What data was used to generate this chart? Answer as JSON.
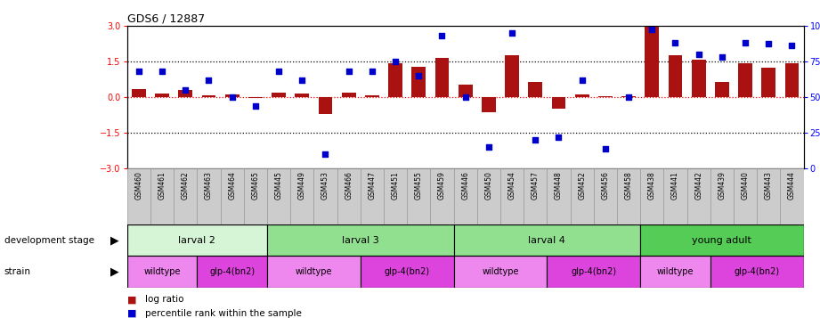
{
  "title": "GDS6 / 12887",
  "samples": [
    "GSM460",
    "GSM461",
    "GSM462",
    "GSM463",
    "GSM464",
    "GSM465",
    "GSM445",
    "GSM449",
    "GSM453",
    "GSM466",
    "GSM447",
    "GSM451",
    "GSM455",
    "GSM459",
    "GSM446",
    "GSM450",
    "GSM454",
    "GSM457",
    "GSM448",
    "GSM452",
    "GSM456",
    "GSM458",
    "GSM438",
    "GSM441",
    "GSM442",
    "GSM439",
    "GSM440",
    "GSM443",
    "GSM444"
  ],
  "log_ratio": [
    0.35,
    0.15,
    0.28,
    0.08,
    0.12,
    -0.04,
    0.18,
    0.15,
    -0.7,
    0.18,
    0.08,
    1.4,
    1.25,
    1.65,
    0.5,
    -0.65,
    1.75,
    0.62,
    -0.48,
    0.1,
    0.05,
    0.04,
    2.95,
    1.75,
    1.55,
    0.62,
    1.4,
    1.22,
    1.4
  ],
  "percentile": [
    68,
    68,
    55,
    62,
    50,
    44,
    68,
    62,
    10,
    68,
    68,
    75,
    65,
    93,
    50,
    15,
    95,
    20,
    22,
    62,
    14,
    50,
    97,
    88,
    80,
    78,
    88,
    87,
    86
  ],
  "development_stages": [
    {
      "label": "larval 2",
      "start": 0,
      "end": 6,
      "color": "#d6f5d6"
    },
    {
      "label": "larval 3",
      "start": 6,
      "end": 14,
      "color": "#90e090"
    },
    {
      "label": "larval 4",
      "start": 14,
      "end": 22,
      "color": "#90e090"
    },
    {
      "label": "young adult",
      "start": 22,
      "end": 29,
      "color": "#55cc55"
    }
  ],
  "strains": [
    {
      "label": "wildtype",
      "start": 0,
      "end": 3,
      "color": "#ee88ee"
    },
    {
      "label": "glp-4(bn2)",
      "start": 3,
      "end": 6,
      "color": "#dd44dd"
    },
    {
      "label": "wildtype",
      "start": 6,
      "end": 10,
      "color": "#ee88ee"
    },
    {
      "label": "glp-4(bn2)",
      "start": 10,
      "end": 14,
      "color": "#dd44dd"
    },
    {
      "label": "wildtype",
      "start": 14,
      "end": 18,
      "color": "#ee88ee"
    },
    {
      "label": "glp-4(bn2)",
      "start": 18,
      "end": 22,
      "color": "#dd44dd"
    },
    {
      "label": "wildtype",
      "start": 22,
      "end": 25,
      "color": "#ee88ee"
    },
    {
      "label": "glp-4(bn2)",
      "start": 25,
      "end": 29,
      "color": "#dd44dd"
    }
  ],
  "ylim": [
    -3,
    3
  ],
  "y2lim": [
    0,
    100
  ],
  "yticks_left": [
    -3,
    -1.5,
    0,
    1.5,
    3
  ],
  "yticks_right": [
    0,
    25,
    50,
    75,
    100
  ],
  "bar_color": "#aa1111",
  "dot_color": "#0000cc",
  "bar_width": 0.6,
  "label_bg": "#cccccc",
  "label_edge": "#999999"
}
